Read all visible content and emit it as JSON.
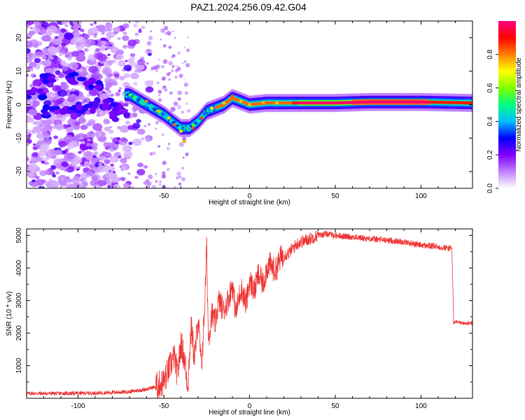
{
  "title": "PAZ1.2024.256.09.42.G04",
  "chart_data": [
    {
      "type": "heatmap",
      "xlabel": "Height of straight line (km)",
      "ylabel": "Frequency (Hz)",
      "xlim": [
        -130,
        130
      ],
      "ylim": [
        -25,
        25
      ],
      "xticks": [
        -100,
        -50,
        0,
        50,
        100
      ],
      "yticks": [
        -20,
        -10,
        0,
        10,
        20
      ],
      "colorbar": {
        "label": "Normalized spectral amplitude",
        "range": [
          0,
          1
        ],
        "ticks": [
          "0.0",
          "0.2",
          "0.4",
          "0.6",
          "0.8"
        ],
        "colors": [
          "#ffffff",
          "#c080ff",
          "#8000ff",
          "#0000ff",
          "#00c0ff",
          "#00ff80",
          "#80ff00",
          "#ffff00",
          "#ff8000",
          "#ff0000",
          "#ff0080"
        ]
      },
      "ridge": {
        "x": [
          -70,
          -60,
          -50,
          -45,
          -40,
          -35,
          -30,
          -25,
          -20,
          -15,
          -10,
          -5,
          0,
          10,
          20,
          30,
          50,
          70,
          100,
          130
        ],
        "y": [
          3,
          0,
          -3,
          -5,
          -7,
          -7,
          -5,
          -2,
          -1,
          0,
          2,
          1,
          0,
          0.5,
          0.5,
          0.5,
          0.5,
          0.8,
          0.8,
          0.5
        ]
      }
    },
    {
      "type": "line",
      "xlabel": "Height of straight line (km)",
      "ylabel": "SNR (10 * v/v)",
      "xlim": [
        -130,
        130
      ],
      "ylim": [
        0,
        5200
      ],
      "xticks": [
        -100,
        -50,
        0,
        50,
        100
      ],
      "yticks": [
        1000,
        2000,
        3000,
        4000,
        5000
      ],
      "series": [
        {
          "color": "#ee3333",
          "x": [
            -130,
            -110,
            -90,
            -70,
            -60,
            -55,
            -50,
            -47,
            -44,
            -42,
            -40,
            -38,
            -36,
            -34,
            -32,
            -30,
            -28,
            -26,
            -25,
            -24,
            -22,
            -20,
            -18,
            -15,
            -12,
            -10,
            -8,
            -5,
            -2,
            0,
            3,
            5,
            8,
            10,
            12,
            15,
            18,
            20,
            23,
            25,
            28,
            30,
            33,
            35,
            40,
            45,
            50,
            60,
            70,
            80,
            90,
            100,
            110,
            118,
            119,
            120,
            125,
            130
          ],
          "y": [
            150,
            150,
            160,
            200,
            280,
            350,
            500,
            900,
            1300,
            700,
            1700,
            1200,
            400,
            2200,
            1200,
            2500,
            900,
            3000,
            4700,
            1800,
            2600,
            2300,
            3000,
            2700,
            3100,
            3500,
            2600,
            3400,
            2900,
            3600,
            3300,
            3800,
            3500,
            4000,
            4100,
            3900,
            4300,
            4400,
            4450,
            4600,
            4750,
            4800,
            4850,
            4900,
            5000,
            5050,
            5000,
            4950,
            4900,
            4850,
            4800,
            4700,
            4650,
            4600,
            2300,
            2350,
            2300,
            2300
          ]
        }
      ]
    }
  ]
}
